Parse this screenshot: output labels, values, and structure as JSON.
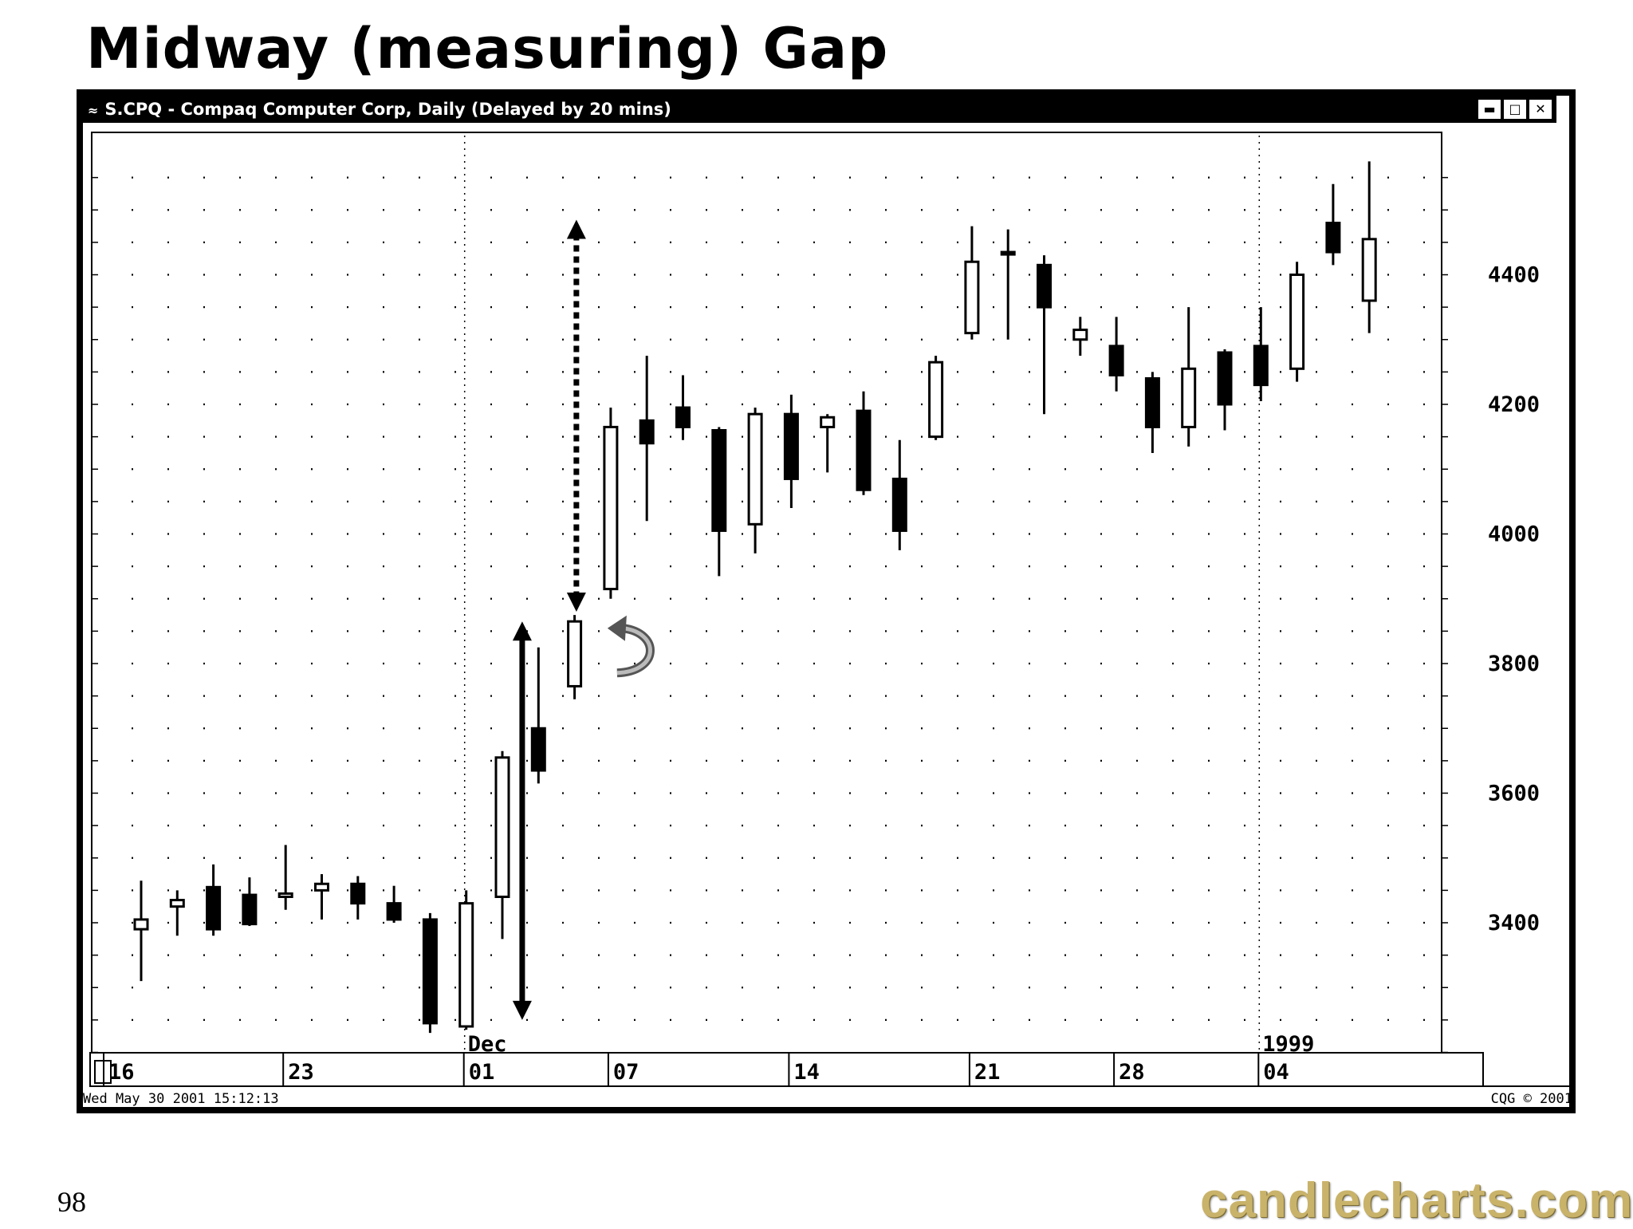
{
  "page": {
    "title": "Midway (measuring) Gap",
    "page_number": "98",
    "brand_text": "candlecharts.com"
  },
  "window": {
    "title": "S.CPQ - Compaq Computer Corp, Daily (Delayed by 20 mins)",
    "app_icon": "cqg-icon",
    "buttons": [
      "minimize-icon",
      "maximize-icon",
      "close-icon"
    ],
    "footer_timestamp": "Wed May 30 2001 15:12:13",
    "footer_copyright": "CQG © 2001"
  },
  "chart_data": {
    "type": "candlestick",
    "title": "",
    "xlabel": "",
    "ylabel": "",
    "ylim": [
      3170,
      4570
    ],
    "y_ticks": [
      3400,
      3600,
      3800,
      4000,
      4200,
      4400
    ],
    "y_tick_labels": [
      "3400",
      "3600",
      "3800",
      "4000",
      "4200",
      "4400"
    ],
    "x_tick_labels": [
      {
        "label": "16",
        "index": 0
      },
      {
        "label": "23",
        "index": 4
      },
      {
        "label": "01",
        "index": 9
      },
      {
        "label": "07",
        "index": 13
      },
      {
        "label": "14",
        "index": 18
      },
      {
        "label": "21",
        "index": 23
      },
      {
        "label": "28",
        "index": 27
      },
      {
        "label": "04",
        "index": 31
      }
    ],
    "period_labels": [
      {
        "label": "Dec",
        "index": 9
      },
      {
        "label": "1999",
        "index": 31
      }
    ],
    "grid": true,
    "candles": [
      {
        "o": 3390,
        "h": 3465,
        "l": 3310,
        "c": 3405
      },
      {
        "o": 3425,
        "h": 3450,
        "l": 3380,
        "c": 3435
      },
      {
        "o": 3455,
        "h": 3490,
        "l": 3380,
        "c": 3390
      },
      {
        "o": 3443,
        "h": 3470,
        "l": 3395,
        "c": 3398
      },
      {
        "o": 3440,
        "h": 3520,
        "l": 3420,
        "c": 3445
      },
      {
        "o": 3450,
        "h": 3475,
        "l": 3405,
        "c": 3460
      },
      {
        "o": 3460,
        "h": 3472,
        "l": 3405,
        "c": 3430
      },
      {
        "o": 3430,
        "h": 3457,
        "l": 3400,
        "c": 3405
      },
      {
        "o": 3405,
        "h": 3415,
        "l": 3230,
        "c": 3245
      },
      {
        "o": 3240,
        "h": 3450,
        "l": 3235,
        "c": 3430
      },
      {
        "o": 3440,
        "h": 3665,
        "l": 3375,
        "c": 3655
      },
      {
        "o": 3700,
        "h": 3825,
        "l": 3615,
        "c": 3635
      },
      {
        "o": 3765,
        "h": 3875,
        "l": 3745,
        "c": 3865
      },
      {
        "o": 3915,
        "h": 4195,
        "l": 3900,
        "c": 4165
      },
      {
        "o": 4175,
        "h": 4275,
        "l": 4020,
        "c": 4140
      },
      {
        "o": 4195,
        "h": 4245,
        "l": 4145,
        "c": 4165
      },
      {
        "o": 4160,
        "h": 4165,
        "l": 3935,
        "c": 4005
      },
      {
        "o": 4015,
        "h": 4195,
        "l": 3970,
        "c": 4185
      },
      {
        "o": 4185,
        "h": 4215,
        "l": 4040,
        "c": 4085
      },
      {
        "o": 4165,
        "h": 4185,
        "l": 4095,
        "c": 4180
      },
      {
        "o": 4190,
        "h": 4220,
        "l": 4060,
        "c": 4068
      },
      {
        "o": 4085,
        "h": 4145,
        "l": 3975,
        "c": 4005
      },
      {
        "o": 4150,
        "h": 4275,
        "l": 4145,
        "c": 4265
      },
      {
        "o": 4310,
        "h": 4475,
        "l": 4300,
        "c": 4420
      },
      {
        "o": 4435,
        "h": 4470,
        "l": 4300,
        "c": 4432
      },
      {
        "o": 4415,
        "h": 4430,
        "l": 4185,
        "c": 4350
      },
      {
        "o": 4300,
        "h": 4335,
        "l": 4275,
        "c": 4315
      },
      {
        "o": 4290,
        "h": 4335,
        "l": 4220,
        "c": 4245
      },
      {
        "o": 4240,
        "h": 4250,
        "l": 4125,
        "c": 4165
      },
      {
        "o": 4165,
        "h": 4350,
        "l": 4135,
        "c": 4255
      },
      {
        "o": 4280,
        "h": 4285,
        "l": 4160,
        "c": 4200
      },
      {
        "o": 4290,
        "h": 4350,
        "l": 4205,
        "c": 4230
      },
      {
        "o": 4255,
        "h": 4420,
        "l": 4235,
        "c": 4400
      },
      {
        "o": 4480,
        "h": 4540,
        "l": 4415,
        "c": 4435
      },
      {
        "o": 4360,
        "h": 4575,
        "l": 4310,
        "c": 4455
      }
    ],
    "annotations": [
      {
        "type": "arrow-solid-double",
        "index": 10.55,
        "from": 3250,
        "to": 3865
      },
      {
        "type": "arrow-dotted-double",
        "index": 12.05,
        "from": 3880,
        "to": 4485
      },
      {
        "type": "curved-arrow",
        "index": 13.0,
        "value": 3820
      }
    ]
  }
}
